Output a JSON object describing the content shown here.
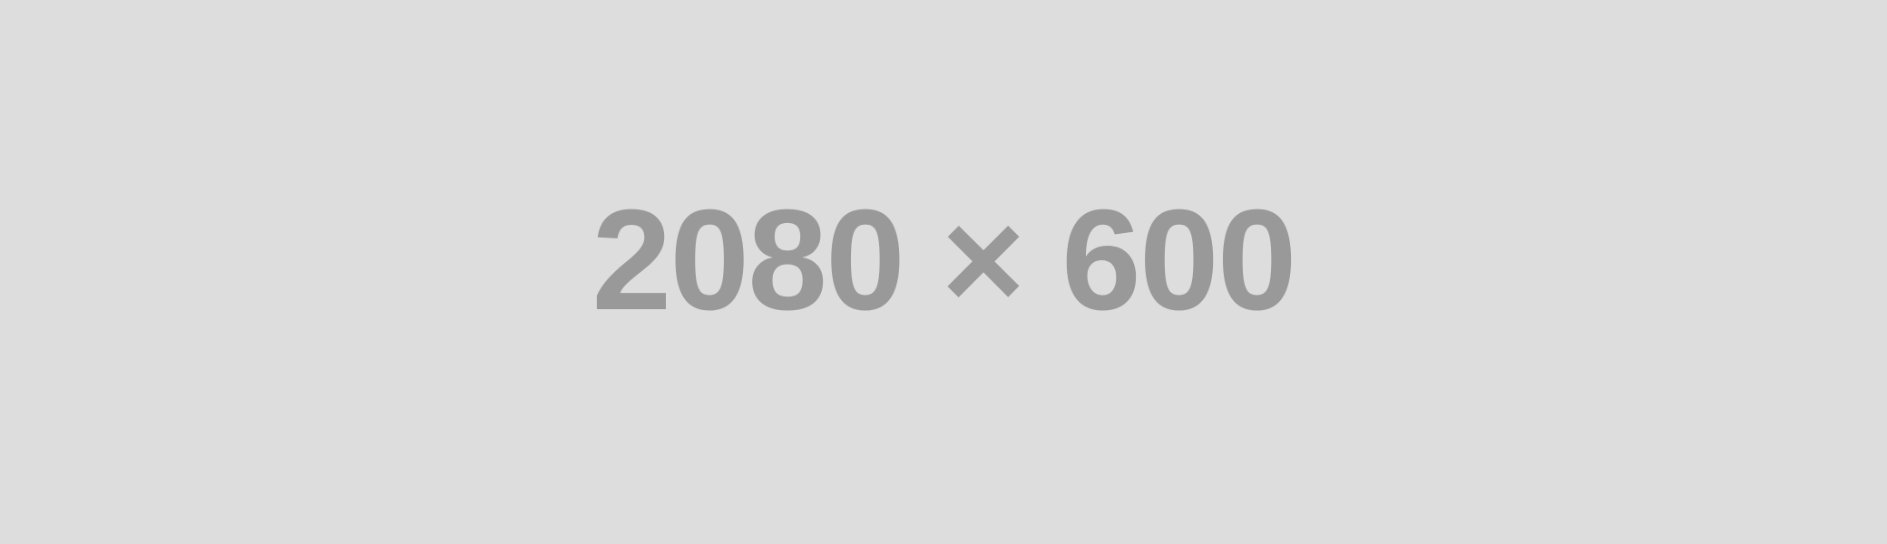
{
  "placeholder": {
    "label": "2080 × 600",
    "background_color": "#dddddd",
    "text_color": "#999999"
  }
}
